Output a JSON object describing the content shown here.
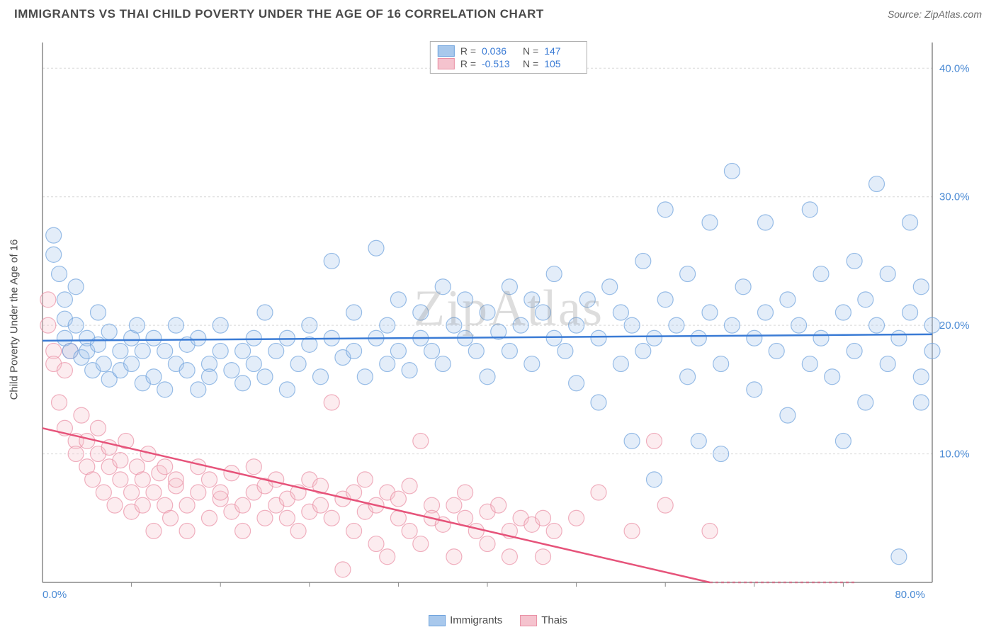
{
  "title": "IMMIGRANTS VS THAI CHILD POVERTY UNDER THE AGE OF 16 CORRELATION CHART",
  "source": "Source: ZipAtlas.com",
  "ylabel": "Child Poverty Under the Age of 16",
  "watermark": "ZipAtlas",
  "chart": {
    "type": "scatter",
    "background_color": "#ffffff",
    "grid_color": "#d8d8d8",
    "grid_dash": "3,3",
    "border_color": "#888888",
    "xlim": [
      0,
      80
    ],
    "ylim": [
      0,
      42
    ],
    "xticks": [
      0,
      80
    ],
    "xtick_labels": [
      "0.0%",
      "80.0%"
    ],
    "yticks": [
      10,
      20,
      30,
      40
    ],
    "ytick_labels": [
      "10.0%",
      "20.0%",
      "30.0%",
      "40.0%"
    ],
    "axis_label_color": "#4a8ad4",
    "axis_label_fontsize": 15,
    "marker_radius": 11,
    "marker_fill_opacity": 0.32,
    "marker_stroke_opacity": 0.7,
    "marker_stroke_width": 1.2,
    "trendline_width": 2.5,
    "trendline_dash_end": "4,4"
  },
  "series": [
    {
      "name": "Immigrants",
      "color_fill": "#a8c8ec",
      "color_stroke": "#6fa3dd",
      "trend_color": "#3a7bd5",
      "R": "0.036",
      "N": "147",
      "trend": {
        "x1": 0,
        "y1": 18.8,
        "x2": 80,
        "y2": 19.3
      },
      "points": [
        [
          1,
          27
        ],
        [
          1,
          25.5
        ],
        [
          1.5,
          24
        ],
        [
          2,
          22
        ],
        [
          2,
          20.5
        ],
        [
          2,
          19
        ],
        [
          2.5,
          18
        ],
        [
          3,
          23
        ],
        [
          3,
          20
        ],
        [
          3.5,
          17.5
        ],
        [
          4,
          19
        ],
        [
          4,
          18
        ],
        [
          4.5,
          16.5
        ],
        [
          5,
          18.5
        ],
        [
          5,
          21
        ],
        [
          5.5,
          17
        ],
        [
          6,
          19.5
        ],
        [
          6,
          15.8
        ],
        [
          7,
          18
        ],
        [
          7,
          16.5
        ],
        [
          8,
          19
        ],
        [
          8,
          17
        ],
        [
          8.5,
          20
        ],
        [
          9,
          18
        ],
        [
          9,
          15.5
        ],
        [
          10,
          16
        ],
        [
          10,
          19
        ],
        [
          11,
          18
        ],
        [
          11,
          15
        ],
        [
          12,
          17
        ],
        [
          12,
          20
        ],
        [
          13,
          16.5
        ],
        [
          13,
          18.5
        ],
        [
          14,
          15
        ],
        [
          14,
          19
        ],
        [
          15,
          17
        ],
        [
          15,
          16
        ],
        [
          16,
          18
        ],
        [
          16,
          20
        ],
        [
          17,
          16.5
        ],
        [
          18,
          18
        ],
        [
          18,
          15.5
        ],
        [
          19,
          19
        ],
        [
          19,
          17
        ],
        [
          20,
          16
        ],
        [
          20,
          21
        ],
        [
          21,
          18
        ],
        [
          22,
          19
        ],
        [
          22,
          15
        ],
        [
          23,
          17
        ],
        [
          24,
          18.5
        ],
        [
          24,
          20
        ],
        [
          25,
          16
        ],
        [
          26,
          19
        ],
        [
          26,
          25
        ],
        [
          27,
          17.5
        ],
        [
          28,
          18
        ],
        [
          28,
          21
        ],
        [
          29,
          16
        ],
        [
          30,
          26
        ],
        [
          30,
          19
        ],
        [
          31,
          20
        ],
        [
          31,
          17
        ],
        [
          32,
          22
        ],
        [
          32,
          18
        ],
        [
          33,
          16.5
        ],
        [
          34,
          19
        ],
        [
          34,
          21
        ],
        [
          35,
          18
        ],
        [
          36,
          23
        ],
        [
          36,
          17
        ],
        [
          37,
          20
        ],
        [
          38,
          19
        ],
        [
          38,
          22
        ],
        [
          39,
          18
        ],
        [
          40,
          21
        ],
        [
          40,
          16
        ],
        [
          41,
          19.5
        ],
        [
          42,
          23
        ],
        [
          42,
          18
        ],
        [
          43,
          20
        ],
        [
          44,
          17
        ],
        [
          44,
          22
        ],
        [
          45,
          21
        ],
        [
          46,
          19
        ],
        [
          46,
          24
        ],
        [
          47,
          18
        ],
        [
          48,
          20
        ],
        [
          48,
          15.5
        ],
        [
          49,
          22
        ],
        [
          50,
          14
        ],
        [
          50,
          19
        ],
        [
          51,
          23
        ],
        [
          52,
          17
        ],
        [
          52,
          21
        ],
        [
          53,
          20
        ],
        [
          53,
          11
        ],
        [
          54,
          25
        ],
        [
          54,
          18
        ],
        [
          55,
          19
        ],
        [
          55,
          8
        ],
        [
          56,
          22
        ],
        [
          56,
          29
        ],
        [
          57,
          20
        ],
        [
          58,
          16
        ],
        [
          58,
          24
        ],
        [
          59,
          11
        ],
        [
          59,
          19
        ],
        [
          60,
          28
        ],
        [
          60,
          21
        ],
        [
          61,
          17
        ],
        [
          61,
          10
        ],
        [
          62,
          20
        ],
        [
          62,
          32
        ],
        [
          63,
          23
        ],
        [
          64,
          19
        ],
        [
          64,
          15
        ],
        [
          65,
          21
        ],
        [
          65,
          28
        ],
        [
          66,
          18
        ],
        [
          67,
          22
        ],
        [
          67,
          13
        ],
        [
          68,
          20
        ],
        [
          69,
          29
        ],
        [
          69,
          17
        ],
        [
          70,
          24
        ],
        [
          70,
          19
        ],
        [
          71,
          16
        ],
        [
          72,
          21
        ],
        [
          72,
          11
        ],
        [
          73,
          18
        ],
        [
          73,
          25
        ],
        [
          74,
          22
        ],
        [
          74,
          14
        ],
        [
          75,
          20
        ],
        [
          75,
          31
        ],
        [
          76,
          17
        ],
        [
          76,
          24
        ],
        [
          77,
          19
        ],
        [
          77,
          2
        ],
        [
          78,
          28
        ],
        [
          78,
          21
        ],
        [
          79,
          16
        ],
        [
          79,
          23
        ],
        [
          80,
          20
        ],
        [
          80,
          18
        ],
        [
          79,
          14
        ]
      ]
    },
    {
      "name": "Thais",
      "color_fill": "#f5c3ce",
      "color_stroke": "#e990a5",
      "trend_color": "#e6537a",
      "R": "-0.513",
      "N": "105",
      "trend": {
        "x1": 0,
        "y1": 12,
        "x2": 60,
        "y2": 0
      },
      "trend_dash_extend": {
        "x1": 60,
        "y1": 0,
        "x2": 73,
        "y2": -2.5
      },
      "points": [
        [
          0.5,
          22
        ],
        [
          0.5,
          20
        ],
        [
          1,
          18
        ],
        [
          1,
          17
        ],
        [
          1.5,
          14
        ],
        [
          2,
          16.5
        ],
        [
          2,
          12
        ],
        [
          2.5,
          18
        ],
        [
          3,
          11
        ],
        [
          3,
          10
        ],
        [
          3.5,
          13
        ],
        [
          4,
          9
        ],
        [
          4,
          11
        ],
        [
          4.5,
          8
        ],
        [
          5,
          10
        ],
        [
          5,
          12
        ],
        [
          5.5,
          7
        ],
        [
          6,
          9
        ],
        [
          6,
          10.5
        ],
        [
          6.5,
          6
        ],
        [
          7,
          8
        ],
        [
          7,
          9.5
        ],
        [
          7.5,
          11
        ],
        [
          8,
          7
        ],
        [
          8,
          5.5
        ],
        [
          8.5,
          9
        ],
        [
          9,
          6
        ],
        [
          9,
          8
        ],
        [
          9.5,
          10
        ],
        [
          10,
          7
        ],
        [
          10,
          4
        ],
        [
          10.5,
          8.5
        ],
        [
          11,
          6
        ],
        [
          11,
          9
        ],
        [
          11.5,
          5
        ],
        [
          12,
          7.5
        ],
        [
          12,
          8
        ],
        [
          13,
          6
        ],
        [
          13,
          4
        ],
        [
          14,
          7
        ],
        [
          14,
          9
        ],
        [
          15,
          5
        ],
        [
          15,
          8
        ],
        [
          16,
          6.5
        ],
        [
          16,
          7
        ],
        [
          17,
          5.5
        ],
        [
          17,
          8.5
        ],
        [
          18,
          6
        ],
        [
          18,
          4
        ],
        [
          19,
          7
        ],
        [
          19,
          9
        ],
        [
          20,
          5
        ],
        [
          20,
          7.5
        ],
        [
          21,
          6
        ],
        [
          21,
          8
        ],
        [
          22,
          5
        ],
        [
          22,
          6.5
        ],
        [
          23,
          7
        ],
        [
          23,
          4
        ],
        [
          24,
          8
        ],
        [
          24,
          5.5
        ],
        [
          25,
          6
        ],
        [
          25,
          7.5
        ],
        [
          26,
          5
        ],
        [
          26,
          14
        ],
        [
          27,
          6.5
        ],
        [
          27,
          1
        ],
        [
          28,
          7
        ],
        [
          28,
          4
        ],
        [
          29,
          5.5
        ],
        [
          29,
          8
        ],
        [
          30,
          6
        ],
        [
          30,
          3
        ],
        [
          31,
          7
        ],
        [
          31,
          2
        ],
        [
          32,
          5
        ],
        [
          32,
          6.5
        ],
        [
          33,
          4
        ],
        [
          33,
          7.5
        ],
        [
          34,
          11
        ],
        [
          34,
          3
        ],
        [
          35,
          6
        ],
        [
          35,
          5
        ],
        [
          36,
          4.5
        ],
        [
          37,
          6
        ],
        [
          37,
          2
        ],
        [
          38,
          5
        ],
        [
          38,
          7
        ],
        [
          39,
          4
        ],
        [
          40,
          5.5
        ],
        [
          40,
          3
        ],
        [
          41,
          6
        ],
        [
          42,
          4
        ],
        [
          42,
          2
        ],
        [
          43,
          5
        ],
        [
          44,
          4.5
        ],
        [
          45,
          5
        ],
        [
          45,
          2
        ],
        [
          46,
          4
        ],
        [
          48,
          5
        ],
        [
          50,
          7
        ],
        [
          53,
          4
        ],
        [
          55,
          11
        ],
        [
          56,
          6
        ],
        [
          60,
          4
        ]
      ]
    }
  ],
  "legend_top": {
    "R_label": "R =",
    "N_label": "N ="
  },
  "legend_bottom": [
    {
      "label": "Immigrants",
      "fill": "#a8c8ec",
      "stroke": "#6fa3dd"
    },
    {
      "label": "Thais",
      "fill": "#f5c3ce",
      "stroke": "#e990a5"
    }
  ]
}
